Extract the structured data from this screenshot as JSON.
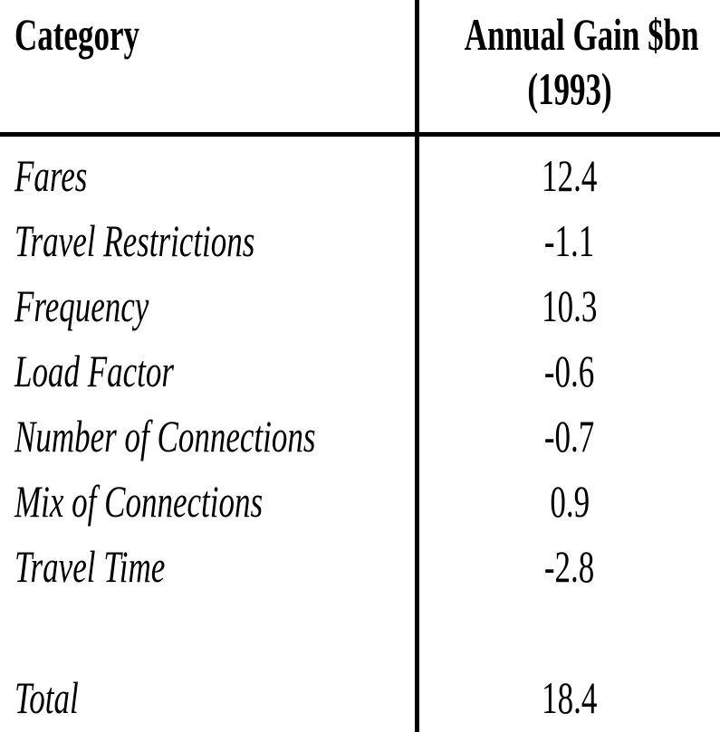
{
  "table": {
    "header": {
      "category": "Category",
      "value_line1": "Annual Gain $bn",
      "value_line2": "(1993)"
    },
    "rows": [
      {
        "category": "Fares",
        "value": "12.4"
      },
      {
        "category": "Travel Restrictions",
        "value": "-1.1"
      },
      {
        "category": "Frequency",
        "value": "10.3"
      },
      {
        "category": "Load Factor",
        "value": "-0.6"
      },
      {
        "category": "Number of Connections",
        "value": "-0.7"
      },
      {
        "category": "Mix of Connections",
        "value": "0.9"
      },
      {
        "category": "Travel Time",
        "value": "-2.8"
      }
    ],
    "total": {
      "category": "Total",
      "value": "18.4"
    }
  }
}
